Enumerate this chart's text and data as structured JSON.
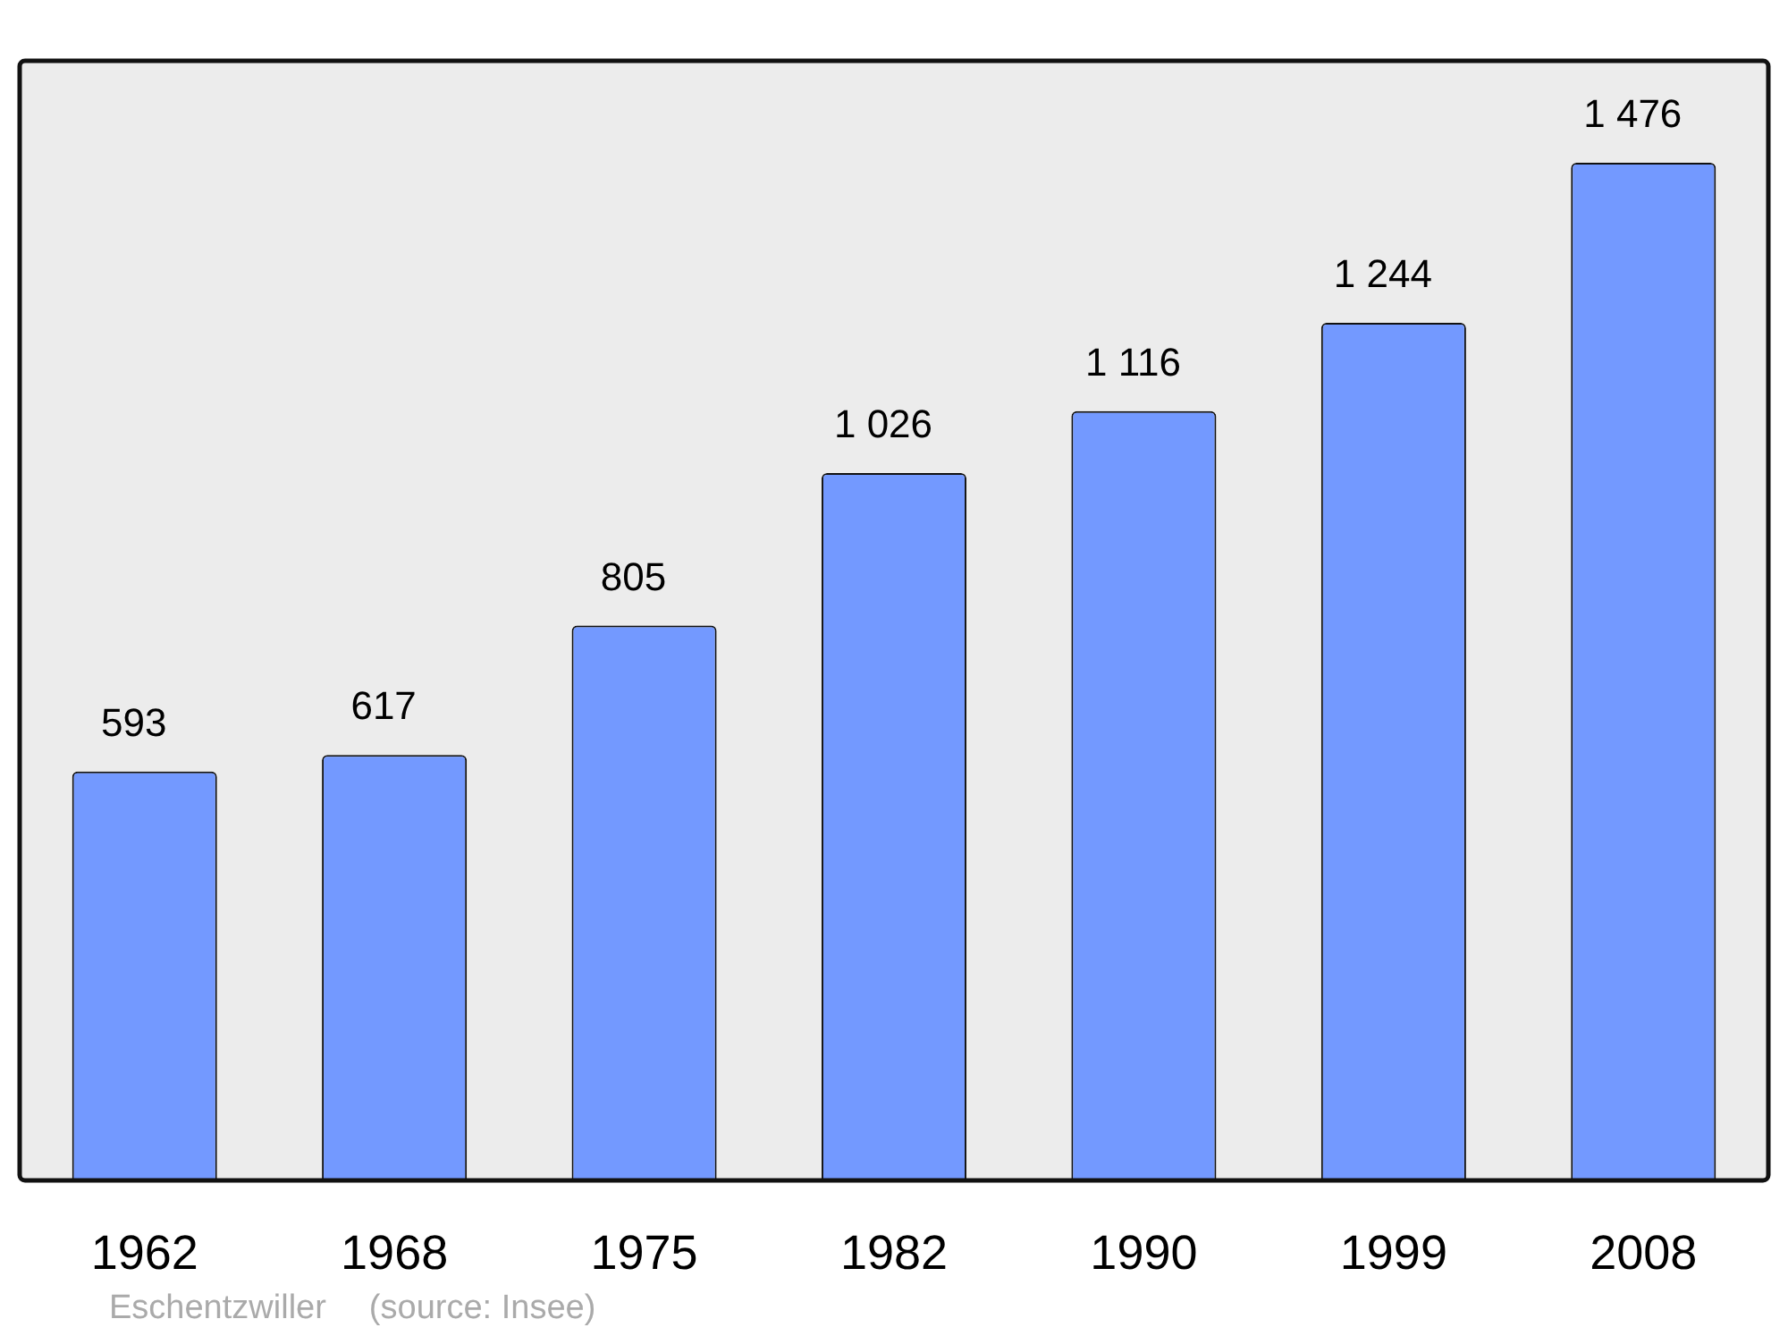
{
  "chart_data": {
    "type": "bar",
    "categories": [
      "1962",
      "1968",
      "1975",
      "1982",
      "1990",
      "1999",
      "2008"
    ],
    "values": [
      593,
      617,
      805,
      1026,
      1116,
      1244,
      1476
    ],
    "value_labels": [
      "593",
      "617",
      "805",
      "1 026",
      "1 116",
      "1 244",
      "1 476"
    ],
    "color": "#7399ff",
    "ylim": [
      0,
      1624
    ],
    "tick_labels": "x",
    "grid": false,
    "legend": false,
    "annotations": [
      "Eschentzwiller",
      "(source: Insee)"
    ]
  }
}
